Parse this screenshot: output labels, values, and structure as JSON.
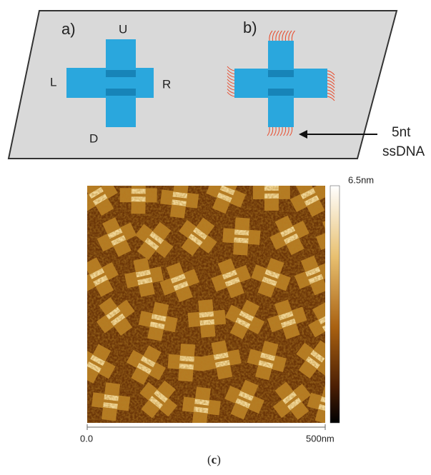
{
  "panel_a": {
    "label": "a)",
    "up": "U",
    "left": "L",
    "right": "R",
    "down": "D"
  },
  "panel_b": {
    "label": "b)",
    "annotation": [
      "5nt",
      "ssDNA"
    ]
  },
  "panel_c": {
    "colorbar_max": "6.5nm",
    "scale_start": "0.0",
    "scale_end": "500nm",
    "caption": [
      "(",
      "c",
      ")"
    ]
  }
}
